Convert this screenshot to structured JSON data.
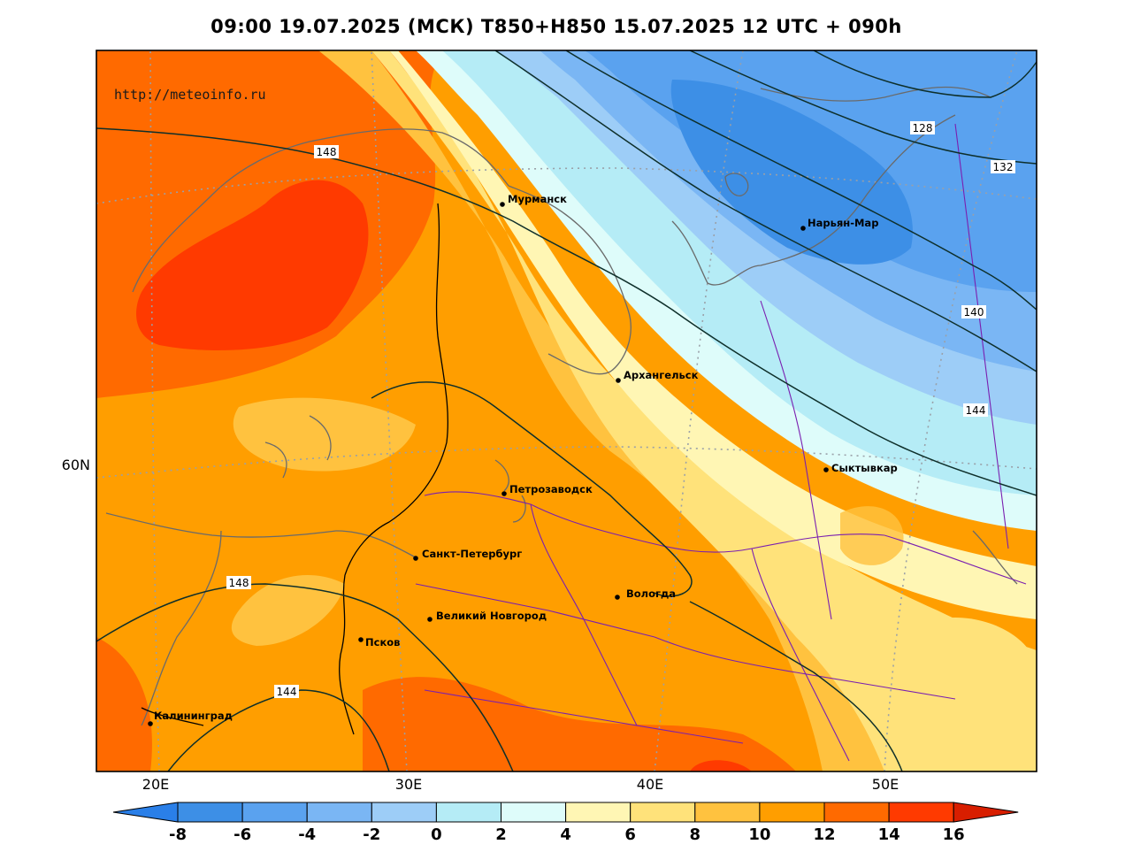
{
  "title": "09:00 19.07.2025 (МСК) T850+H850 15.07.2025 12 UTC + 090h",
  "website": "http://meteoinfo.ru",
  "axes": {
    "x_ticks": [
      "20E",
      "30E",
      "40E",
      "50E"
    ],
    "y_ticks": [
      "60N"
    ]
  },
  "cities": [
    {
      "name": "Мурманск"
    },
    {
      "name": "Нарьян-Мар"
    },
    {
      "name": "Архангельск"
    },
    {
      "name": "Сыктывкар"
    },
    {
      "name": "Петрозаводск"
    },
    {
      "name": "Санкт-Петербург"
    },
    {
      "name": "Вологда"
    },
    {
      "name": "Великий Новгород"
    },
    {
      "name": "Псков"
    },
    {
      "name": "Калининград"
    }
  ],
  "isoline_labels": [
    "148",
    "128",
    "132",
    "140",
    "144",
    "148",
    "144"
  ],
  "colorbar": {
    "ticks": [
      "-8",
      "-6",
      "-4",
      "-2",
      "0",
      "2",
      "4",
      "6",
      "8",
      "10",
      "12",
      "14",
      "16"
    ],
    "colors": [
      "#2a7fe8",
      "#3d8fe6",
      "#5aa2ef",
      "#7ab6f4",
      "#9dcdf7",
      "#b5ecf6",
      "#defcfa",
      "#fff6b4",
      "#ffe27a",
      "#ffc23f",
      "#ff9e00",
      "#ff6a00",
      "#ff3a00",
      "#d81e00"
    ]
  },
  "colors": {
    "frame": "#000000",
    "coast": "#6a6a6a",
    "borders": "#7a1fb0",
    "isolines": "#0e2f2a"
  }
}
